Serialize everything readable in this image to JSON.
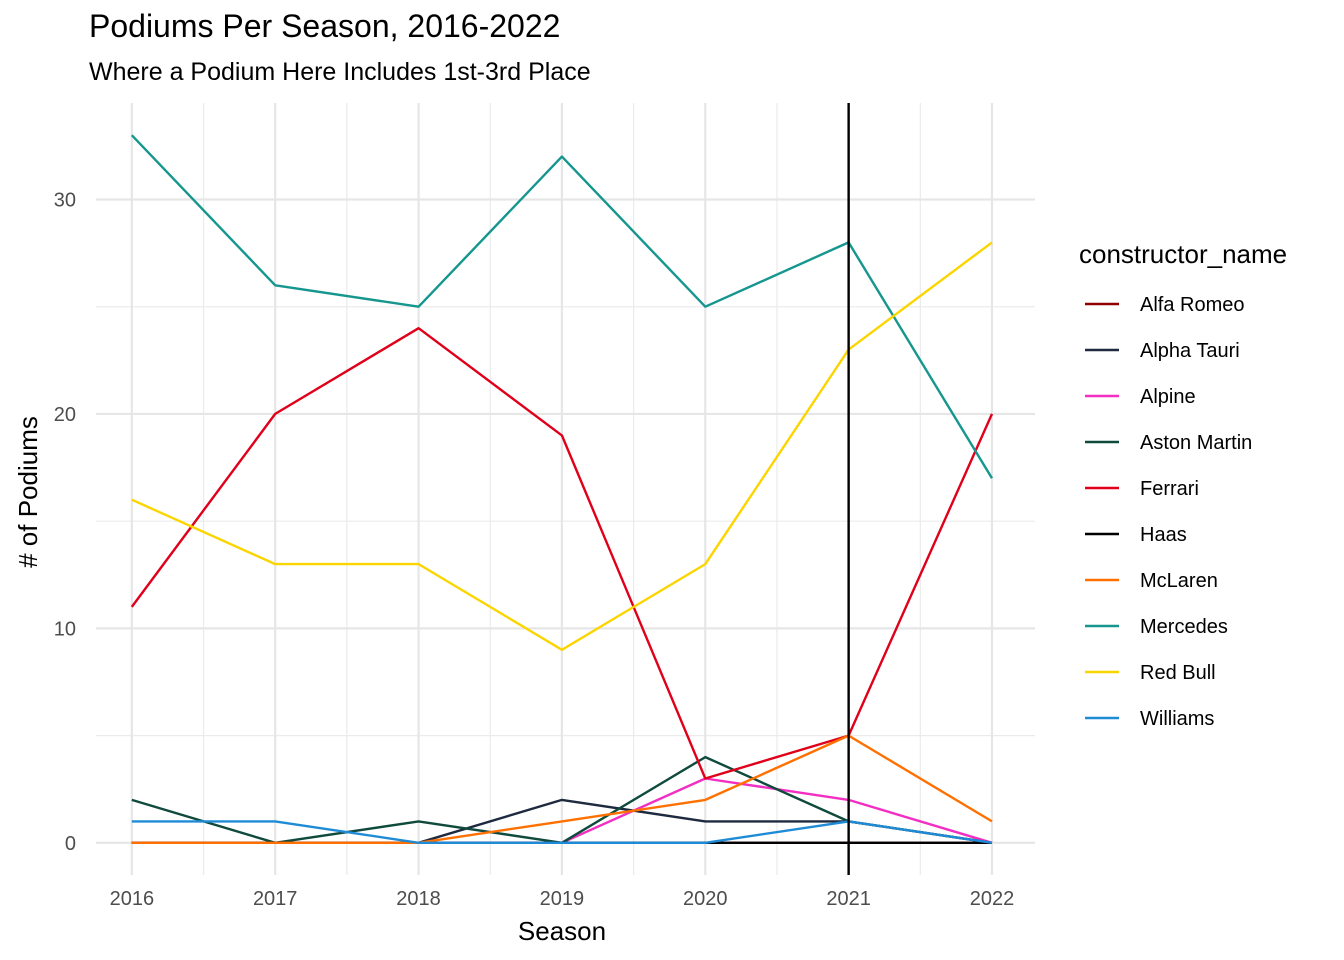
{
  "chart_data": {
    "type": "line",
    "title": "Podiums Per Season, 2016-2022",
    "subtitle": "Where a Podium Here Includes 1st-3rd Place",
    "xlabel": "Season",
    "ylabel": "# of Podiums",
    "x": [
      2016,
      2017,
      2018,
      2019,
      2020,
      2021,
      2022
    ],
    "xlim": [
      2015.75,
      2022.3
    ],
    "ylim": [
      -1.5,
      34.5
    ],
    "yticks": [
      0,
      10,
      20,
      30
    ],
    "grid": true,
    "legend_title": "constructor_name",
    "legend_position": "right",
    "vline": {
      "x": 2021,
      "color": "#000000"
    },
    "series": [
      {
        "name": "Alfa Romeo",
        "color": "#900000",
        "values": [
          0,
          0,
          0,
          0,
          0,
          0,
          0
        ]
      },
      {
        "name": "Alpha Tauri",
        "color": "#1e2a3f",
        "values": [
          0,
          0,
          0,
          2,
          1,
          1,
          0
        ]
      },
      {
        "name": "Alpine",
        "color": "#f32ec2",
        "values": [
          0,
          0,
          0,
          0,
          3,
          2,
          0
        ]
      },
      {
        "name": "Aston Martin",
        "color": "#0f4a3d",
        "values": [
          2,
          0,
          1,
          0,
          4,
          1,
          0
        ]
      },
      {
        "name": "Ferrari",
        "color": "#e0001a",
        "values": [
          11,
          20,
          24,
          19,
          3,
          5,
          20
        ]
      },
      {
        "name": "Haas",
        "color": "#000000",
        "values": [
          0,
          0,
          0,
          0,
          0,
          0,
          0
        ]
      },
      {
        "name": "McLaren",
        "color": "#ff7000",
        "values": [
          0,
          0,
          0,
          1,
          2,
          5,
          1
        ]
      },
      {
        "name": "Mercedes",
        "color": "#15968e",
        "values": [
          33,
          26,
          25,
          32,
          25,
          28,
          17
        ]
      },
      {
        "name": "Red Bull",
        "color": "#fbd500",
        "values": [
          16,
          13,
          13,
          9,
          13,
          23,
          28
        ]
      },
      {
        "name": "Williams",
        "color": "#1f8bd6",
        "values": [
          1,
          1,
          0,
          0,
          0,
          1,
          0
        ]
      }
    ]
  }
}
